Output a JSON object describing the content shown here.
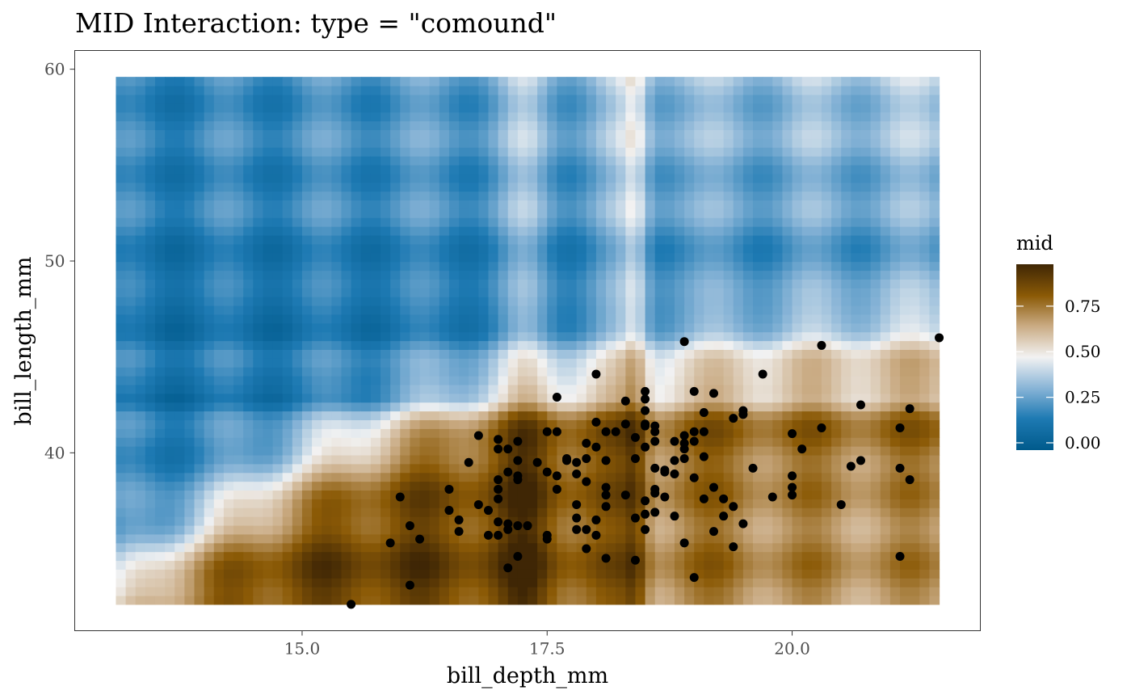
{
  "chart_data": {
    "type": "heatmap",
    "title": "MID Interaction: type = \"comound\"",
    "xlabel": "bill_depth_mm",
    "ylabel": "bill_length_mm",
    "x_ticks": [
      15.0,
      17.5,
      20.0
    ],
    "x_tick_labels": [
      "15.0",
      "17.5",
      "20.0"
    ],
    "y_ticks": [
      40,
      50,
      60
    ],
    "y_tick_labels": [
      "40",
      "50",
      "60"
    ],
    "xlim": [
      13.1,
      21.5
    ],
    "ylim": [
      32.1,
      59.6
    ],
    "grid": false,
    "legend": {
      "title": "mid",
      "position": "right",
      "ticks": [
        0.0,
        0.25,
        0.5,
        0.75
      ],
      "tick_labels": [
        "0.00",
        "0.25",
        "0.50",
        "0.75"
      ],
      "range": [
        -0.04,
        0.98
      ],
      "colors": [
        "#005a8c",
        "#1e7ab3",
        "#86b3d6",
        "#f2f2f2",
        "#c9aa82",
        "#8b5a06",
        "#3f2605"
      ]
    },
    "heatmap_description": "Upper region (bill_length_mm above about 45) is blue (low mid, about 0.0-0.35); lower region is brown (high mid, about 0.6-0.98), with a white transition band along a boundary rising from about 33 at bill_depth 13.1 to about 47 at bill_depth 21.5.",
    "points": [
      {
        "x": 15.5,
        "y": 32.1
      },
      {
        "x": 16.1,
        "y": 33.1
      },
      {
        "x": 15.9,
        "y": 35.3
      },
      {
        "x": 16.2,
        "y": 35.5
      },
      {
        "x": 16.1,
        "y": 36.2
      },
      {
        "x": 16.0,
        "y": 37.7
      },
      {
        "x": 16.5,
        "y": 37.0
      },
      {
        "x": 16.5,
        "y": 38.1
      },
      {
        "x": 16.6,
        "y": 36.5
      },
      {
        "x": 16.6,
        "y": 35.9
      },
      {
        "x": 16.7,
        "y": 39.5
      },
      {
        "x": 16.8,
        "y": 40.9
      },
      {
        "x": 16.8,
        "y": 37.3
      },
      {
        "x": 16.9,
        "y": 35.7
      },
      {
        "x": 16.9,
        "y": 37.0
      },
      {
        "x": 17.0,
        "y": 35.7
      },
      {
        "x": 17.0,
        "y": 36.4
      },
      {
        "x": 17.0,
        "y": 37.6
      },
      {
        "x": 17.0,
        "y": 38.1
      },
      {
        "x": 17.0,
        "y": 38.6
      },
      {
        "x": 17.0,
        "y": 40.2
      },
      {
        "x": 17.0,
        "y": 40.7
      },
      {
        "x": 17.1,
        "y": 34.0
      },
      {
        "x": 17.1,
        "y": 36.0
      },
      {
        "x": 17.1,
        "y": 36.3
      },
      {
        "x": 17.1,
        "y": 39.0
      },
      {
        "x": 17.1,
        "y": 40.2
      },
      {
        "x": 17.2,
        "y": 34.6
      },
      {
        "x": 17.2,
        "y": 36.2
      },
      {
        "x": 17.2,
        "y": 38.6
      },
      {
        "x": 17.2,
        "y": 38.8
      },
      {
        "x": 17.2,
        "y": 39.6
      },
      {
        "x": 17.2,
        "y": 40.6
      },
      {
        "x": 17.3,
        "y": 36.2
      },
      {
        "x": 17.4,
        "y": 39.5
      },
      {
        "x": 17.5,
        "y": 35.5
      },
      {
        "x": 17.5,
        "y": 35.7
      },
      {
        "x": 17.5,
        "y": 39.0
      },
      {
        "x": 17.5,
        "y": 41.1
      },
      {
        "x": 17.6,
        "y": 38.1
      },
      {
        "x": 17.6,
        "y": 38.8
      },
      {
        "x": 17.6,
        "y": 41.1
      },
      {
        "x": 17.6,
        "y": 42.9
      },
      {
        "x": 17.7,
        "y": 39.6
      },
      {
        "x": 17.7,
        "y": 39.7
      },
      {
        "x": 17.8,
        "y": 36.0
      },
      {
        "x": 17.8,
        "y": 36.6
      },
      {
        "x": 17.8,
        "y": 37.3
      },
      {
        "x": 17.8,
        "y": 38.9
      },
      {
        "x": 17.8,
        "y": 39.5
      },
      {
        "x": 17.9,
        "y": 35.0
      },
      {
        "x": 17.9,
        "y": 36.0
      },
      {
        "x": 17.9,
        "y": 38.5
      },
      {
        "x": 17.9,
        "y": 39.7
      },
      {
        "x": 17.9,
        "y": 40.5
      },
      {
        "x": 18.0,
        "y": 35.7
      },
      {
        "x": 18.0,
        "y": 36.5
      },
      {
        "x": 18.0,
        "y": 40.3
      },
      {
        "x": 18.0,
        "y": 41.6
      },
      {
        "x": 18.0,
        "y": 44.1
      },
      {
        "x": 18.1,
        "y": 34.5
      },
      {
        "x": 18.1,
        "y": 37.2
      },
      {
        "x": 18.1,
        "y": 37.8
      },
      {
        "x": 18.1,
        "y": 38.2
      },
      {
        "x": 18.1,
        "y": 39.6
      },
      {
        "x": 18.1,
        "y": 41.1
      },
      {
        "x": 18.2,
        "y": 41.1
      },
      {
        "x": 18.3,
        "y": 37.8
      },
      {
        "x": 18.3,
        "y": 41.5
      },
      {
        "x": 18.3,
        "y": 42.7
      },
      {
        "x": 18.4,
        "y": 34.4
      },
      {
        "x": 18.4,
        "y": 36.6
      },
      {
        "x": 18.4,
        "y": 39.7
      },
      {
        "x": 18.4,
        "y": 40.8
      },
      {
        "x": 18.5,
        "y": 36.0
      },
      {
        "x": 18.5,
        "y": 36.8
      },
      {
        "x": 18.5,
        "y": 37.5
      },
      {
        "x": 18.5,
        "y": 40.3
      },
      {
        "x": 18.5,
        "y": 41.4
      },
      {
        "x": 18.5,
        "y": 41.5
      },
      {
        "x": 18.5,
        "y": 42.2
      },
      {
        "x": 18.5,
        "y": 42.8
      },
      {
        "x": 18.5,
        "y": 43.2
      },
      {
        "x": 18.6,
        "y": 36.9
      },
      {
        "x": 18.6,
        "y": 37.9
      },
      {
        "x": 18.6,
        "y": 38.1
      },
      {
        "x": 18.6,
        "y": 39.2
      },
      {
        "x": 18.6,
        "y": 40.6
      },
      {
        "x": 18.6,
        "y": 41.1
      },
      {
        "x": 18.6,
        "y": 41.4
      },
      {
        "x": 18.7,
        "y": 37.7
      },
      {
        "x": 18.7,
        "y": 39.0
      },
      {
        "x": 18.7,
        "y": 39.1
      },
      {
        "x": 18.8,
        "y": 36.7
      },
      {
        "x": 18.8,
        "y": 38.9
      },
      {
        "x": 18.8,
        "y": 39.6
      },
      {
        "x": 18.8,
        "y": 40.6
      },
      {
        "x": 18.9,
        "y": 35.3
      },
      {
        "x": 18.9,
        "y": 39.7
      },
      {
        "x": 18.9,
        "y": 40.2
      },
      {
        "x": 18.9,
        "y": 40.5
      },
      {
        "x": 18.9,
        "y": 40.9
      },
      {
        "x": 18.9,
        "y": 45.8
      },
      {
        "x": 19.0,
        "y": 33.5
      },
      {
        "x": 19.0,
        "y": 38.7
      },
      {
        "x": 19.0,
        "y": 40.6
      },
      {
        "x": 19.0,
        "y": 41.1
      },
      {
        "x": 19.0,
        "y": 43.2
      },
      {
        "x": 19.1,
        "y": 37.6
      },
      {
        "x": 19.1,
        "y": 39.8
      },
      {
        "x": 19.1,
        "y": 41.1
      },
      {
        "x": 19.1,
        "y": 42.1
      },
      {
        "x": 19.2,
        "y": 35.9
      },
      {
        "x": 19.2,
        "y": 38.2
      },
      {
        "x": 19.2,
        "y": 43.1
      },
      {
        "x": 19.3,
        "y": 36.7
      },
      {
        "x": 19.3,
        "y": 37.6
      },
      {
        "x": 19.4,
        "y": 35.1
      },
      {
        "x": 19.4,
        "y": 37.2
      },
      {
        "x": 19.4,
        "y": 41.8
      },
      {
        "x": 19.5,
        "y": 36.3
      },
      {
        "x": 19.5,
        "y": 42.0
      },
      {
        "x": 19.5,
        "y": 42.2
      },
      {
        "x": 19.6,
        "y": 39.2
      },
      {
        "x": 19.7,
        "y": 44.1
      },
      {
        "x": 19.8,
        "y": 37.7
      },
      {
        "x": 20.0,
        "y": 37.8
      },
      {
        "x": 20.0,
        "y": 38.2
      },
      {
        "x": 20.0,
        "y": 38.8
      },
      {
        "x": 20.0,
        "y": 41.0
      },
      {
        "x": 20.1,
        "y": 40.2
      },
      {
        "x": 20.3,
        "y": 41.3
      },
      {
        "x": 20.3,
        "y": 45.6
      },
      {
        "x": 20.5,
        "y": 37.3
      },
      {
        "x": 20.6,
        "y": 39.3
      },
      {
        "x": 20.7,
        "y": 39.6
      },
      {
        "x": 20.7,
        "y": 42.5
      },
      {
        "x": 21.1,
        "y": 34.6
      },
      {
        "x": 21.1,
        "y": 39.2
      },
      {
        "x": 21.1,
        "y": 41.3
      },
      {
        "x": 21.2,
        "y": 38.6
      },
      {
        "x": 21.2,
        "y": 42.3
      },
      {
        "x": 21.5,
        "y": 46.0
      }
    ]
  }
}
